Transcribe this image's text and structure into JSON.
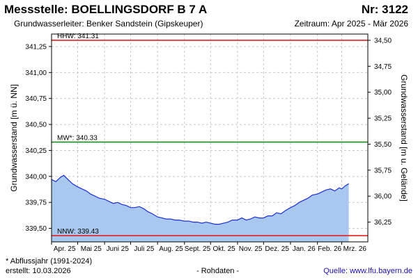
{
  "header": {
    "station": "Messstelle: BOELLINGSDORF B 7 A",
    "number": "Nr: 3122",
    "aquifer": "Grundwasserleiter:   Benker Sandstein (Gipskeuper)",
    "period": "Zeitraum: Apr 2025 - Mär 2026"
  },
  "footer": {
    "note": "* Abflussjahr (1991-2024)",
    "created": "erstellt:  10.03.2026",
    "raw": "- Rohdaten -",
    "source": "Quelle:  www.lfu.bayern.de"
  },
  "colors": {
    "area": "#a8c8f0",
    "line": "#1f2fd0",
    "hhw": "#e02020",
    "nnw": "#e02020",
    "mw": "#1a8a1a",
    "grid": "#c8c8c8"
  },
  "chart_data": {
    "type": "area",
    "xlabel": "",
    "ylabel": "Grundwasserstand [m ü. NN]",
    "ylabel_right": "Grundwasserstand [m u. Gelände]",
    "ylim": [
      339.37,
      341.37
    ],
    "yticks": [
      "341,25",
      "341,00",
      "340,75",
      "340,50",
      "340,25",
      "340,00",
      "339,75",
      "339,50"
    ],
    "yticks_values": [
      341.25,
      341.0,
      340.75,
      340.5,
      340.25,
      340.0,
      339.75,
      339.5
    ],
    "yticks_right": [
      "34,50",
      "34,75",
      "35,00",
      "35,25",
      "35,50",
      "35,75",
      "36,00",
      "36,25"
    ],
    "yticks_right_values": [
      341.31,
      341.06,
      340.81,
      340.56,
      340.31,
      340.06,
      339.81,
      339.56
    ],
    "xticks": [
      "Apr. 25",
      "Mai 25",
      "Juni 25",
      "Juli 25",
      "Aug. 25",
      "Sept. 25",
      "Okt. 25",
      "Nov. 25",
      "Dez. 25",
      "Jan. 26",
      "Feb. 26",
      "Mrz. 26"
    ],
    "x_range": [
      "2025-04-01",
      "2026-03-31"
    ],
    "reference_lines": [
      {
        "label": "HHW: 341.31",
        "value": 341.31,
        "color": "#e02020"
      },
      {
        "label": "MW*: 340.33",
        "value": 340.33,
        "color": "#1a8a1a"
      },
      {
        "label": "NNW: 339.43",
        "value": 339.43,
        "color": "#e02020"
      }
    ],
    "grid": true,
    "series": [
      {
        "x": [
          "2025-04-01",
          "2025-04-06",
          "2025-04-11",
          "2025-04-15",
          "2025-04-20",
          "2025-04-25",
          "2025-05-01",
          "2025-05-06",
          "2025-05-11",
          "2025-05-16",
          "2025-05-21",
          "2025-05-26",
          "2025-06-01",
          "2025-06-06",
          "2025-06-11",
          "2025-06-16",
          "2025-06-21",
          "2025-06-26",
          "2025-07-01",
          "2025-07-06",
          "2025-07-11",
          "2025-07-16",
          "2025-07-21",
          "2025-07-26",
          "2025-08-01",
          "2025-08-06",
          "2025-08-11",
          "2025-08-16",
          "2025-08-21",
          "2025-08-26",
          "2025-09-01",
          "2025-09-06",
          "2025-09-11",
          "2025-09-16",
          "2025-09-21",
          "2025-09-26",
          "2025-10-01",
          "2025-10-06",
          "2025-10-11",
          "2025-10-16",
          "2025-10-21",
          "2025-10-26",
          "2025-11-01",
          "2025-11-06",
          "2025-11-11",
          "2025-11-16",
          "2025-11-21",
          "2025-11-26",
          "2025-12-01",
          "2025-12-06",
          "2025-12-11",
          "2025-12-16",
          "2025-12-21",
          "2025-12-26",
          "2026-01-01",
          "2026-01-06",
          "2026-01-11",
          "2026-01-16",
          "2026-01-21",
          "2026-01-26",
          "2026-02-01",
          "2026-02-06",
          "2026-02-11",
          "2026-02-16",
          "2026-02-21",
          "2026-02-26",
          "2026-03-01",
          "2026-03-05",
          "2026-03-09"
        ],
        "values": [
          339.97,
          339.95,
          339.99,
          340.01,
          339.97,
          339.93,
          339.9,
          339.88,
          339.86,
          339.83,
          339.81,
          339.79,
          339.78,
          339.76,
          339.74,
          339.75,
          339.73,
          339.72,
          339.7,
          339.7,
          339.71,
          339.69,
          339.66,
          339.64,
          339.61,
          339.6,
          339.59,
          339.59,
          339.58,
          339.58,
          339.57,
          339.57,
          339.56,
          339.56,
          339.55,
          339.56,
          339.55,
          339.54,
          339.54,
          339.55,
          339.56,
          339.58,
          339.58,
          339.6,
          339.58,
          339.59,
          339.61,
          339.6,
          339.6,
          339.62,
          339.62,
          339.65,
          339.64,
          339.67,
          339.7,
          339.72,
          339.75,
          339.77,
          339.79,
          339.82,
          339.83,
          339.85,
          339.87,
          339.88,
          339.86,
          339.89,
          339.88,
          339.91,
          339.93
        ]
      }
    ]
  }
}
